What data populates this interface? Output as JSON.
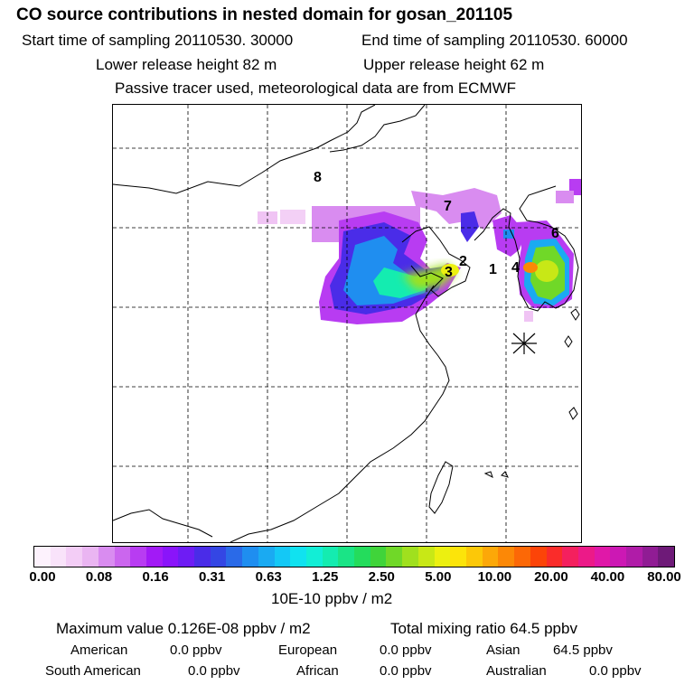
{
  "header": {
    "title": "CO  source contributions in nested domain for gosan_201105",
    "start_time": "Start time of sampling 20110530. 30000",
    "end_time": "End time of sampling 20110530. 60000",
    "lower_height": "Lower release height   82 m",
    "upper_height": "Upper release height   62 m",
    "tracer_note": "Passive tracer used, meteorological data are from ECMWF"
  },
  "map": {
    "region_labels": [
      "1",
      "2",
      "3",
      "4",
      "6",
      "7",
      "8"
    ],
    "receptor_marker": "asterisk-icon"
  },
  "colorbar": {
    "ticks": [
      "0.00",
      "0.08",
      "0.16",
      "0.31",
      "0.63",
      "1.25",
      "2.50",
      "5.00",
      "10.00",
      "20.00",
      "40.00",
      "80.00"
    ],
    "unit": "10E-10 ppbv / m2",
    "colors": [
      "#fdf2fd",
      "#f9e3fa",
      "#f3cdf6",
      "#eab5f2",
      "#d98cf0",
      "#cb66ee",
      "#b83cf2",
      "#a21af6",
      "#8a14fa",
      "#6e1cf4",
      "#4a2ce8",
      "#3446e4",
      "#2a6ae8",
      "#1f8ef0",
      "#1aaaf2",
      "#14c8f6",
      "#10e2f0",
      "#12eed6",
      "#14ecb0",
      "#1ae486",
      "#24dc5c",
      "#40d43a",
      "#70d828",
      "#a0e01e",
      "#c8e816",
      "#ecf010",
      "#fce40a",
      "#fcc808",
      "#fca808",
      "#fc8806",
      "#fc6806",
      "#fc4408",
      "#fa2c2a",
      "#f4205e",
      "#ec1a88",
      "#e018a8",
      "#cc18b4",
      "#b01ca8",
      "#901c94",
      "#6e1a78"
    ]
  },
  "summary": {
    "maximum_value": "Maximum value  0.126E-08 ppbv / m2",
    "total_mixing": "Total mixing ratio       64.5 ppbv",
    "regions": [
      {
        "name": "American",
        "value": "0.0 ppbv"
      },
      {
        "name": "European",
        "value": "0.0 ppbv"
      },
      {
        "name": "Asian",
        "value": "64.5 ppbv"
      },
      {
        "name": "South American",
        "value": "0.0 ppbv"
      },
      {
        "name": "African",
        "value": "0.0 ppbv"
      },
      {
        "name": "Australian",
        "value": "0.0 ppbv"
      }
    ]
  }
}
